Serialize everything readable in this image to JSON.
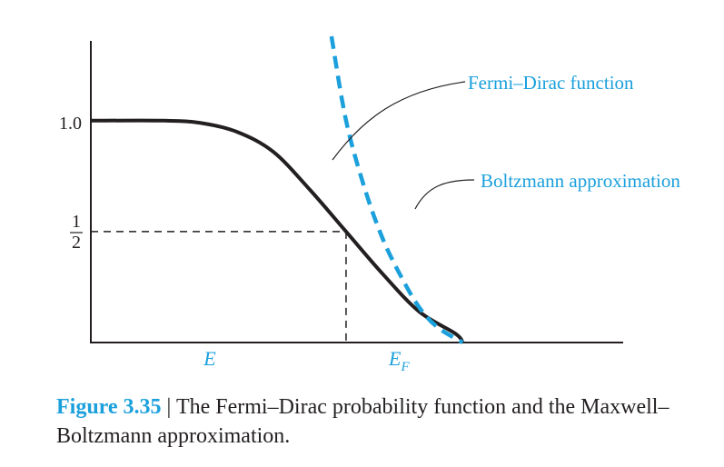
{
  "chart_data": {
    "type": "line",
    "title": "",
    "xlabel": "",
    "ylabel": "",
    "x_ticks": [
      {
        "label": "E",
        "x": -2.1
      },
      {
        "label_main": "E",
        "label_sub": "F",
        "x": 0
      }
    ],
    "y_ticks": [
      {
        "label": "1.0",
        "y": 1.0
      },
      {
        "numerator": "1",
        "denominator": "2",
        "y": 0.5
      }
    ],
    "xlim": [
      -3.5,
      3.8
    ],
    "ylim": [
      0,
      1.38
    ],
    "grid": false,
    "reference_lines": {
      "x": 0,
      "y": 0.5,
      "style": "dashed"
    },
    "series": [
      {
        "name": "Fermi–Dirac function",
        "style": "solid",
        "color": "#231f20",
        "x": [
          -3.5,
          -2.5,
          -2.0,
          -1.5,
          -1.0,
          -0.5,
          0.0,
          0.5,
          1.0,
          1.5,
          1.6
        ],
        "y": [
          1.0,
          1.0,
          0.99,
          0.95,
          0.86,
          0.69,
          0.5,
          0.31,
          0.14,
          0.04,
          0.0
        ]
      },
      {
        "name": "Boltzmann approximation",
        "style": "dashed",
        "color": "#1ba0dc",
        "x": [
          -0.2,
          0.0,
          0.25,
          0.5,
          0.75,
          1.0,
          1.25,
          1.6
        ],
        "y": [
          1.38,
          1.0,
          0.7,
          0.47,
          0.3,
          0.16,
          0.07,
          0.0
        ]
      }
    ],
    "annotations": [
      "Fermi–Dirac function",
      "Boltzmann approximation"
    ]
  },
  "caption": {
    "figure_number": "Figure 3.35",
    "separator": "|",
    "text": "The Fermi–Dirac probability function and the Maxwell–Boltzmann approximation."
  },
  "colors": {
    "accent": "#1ba0dc",
    "ink": "#231f20"
  }
}
